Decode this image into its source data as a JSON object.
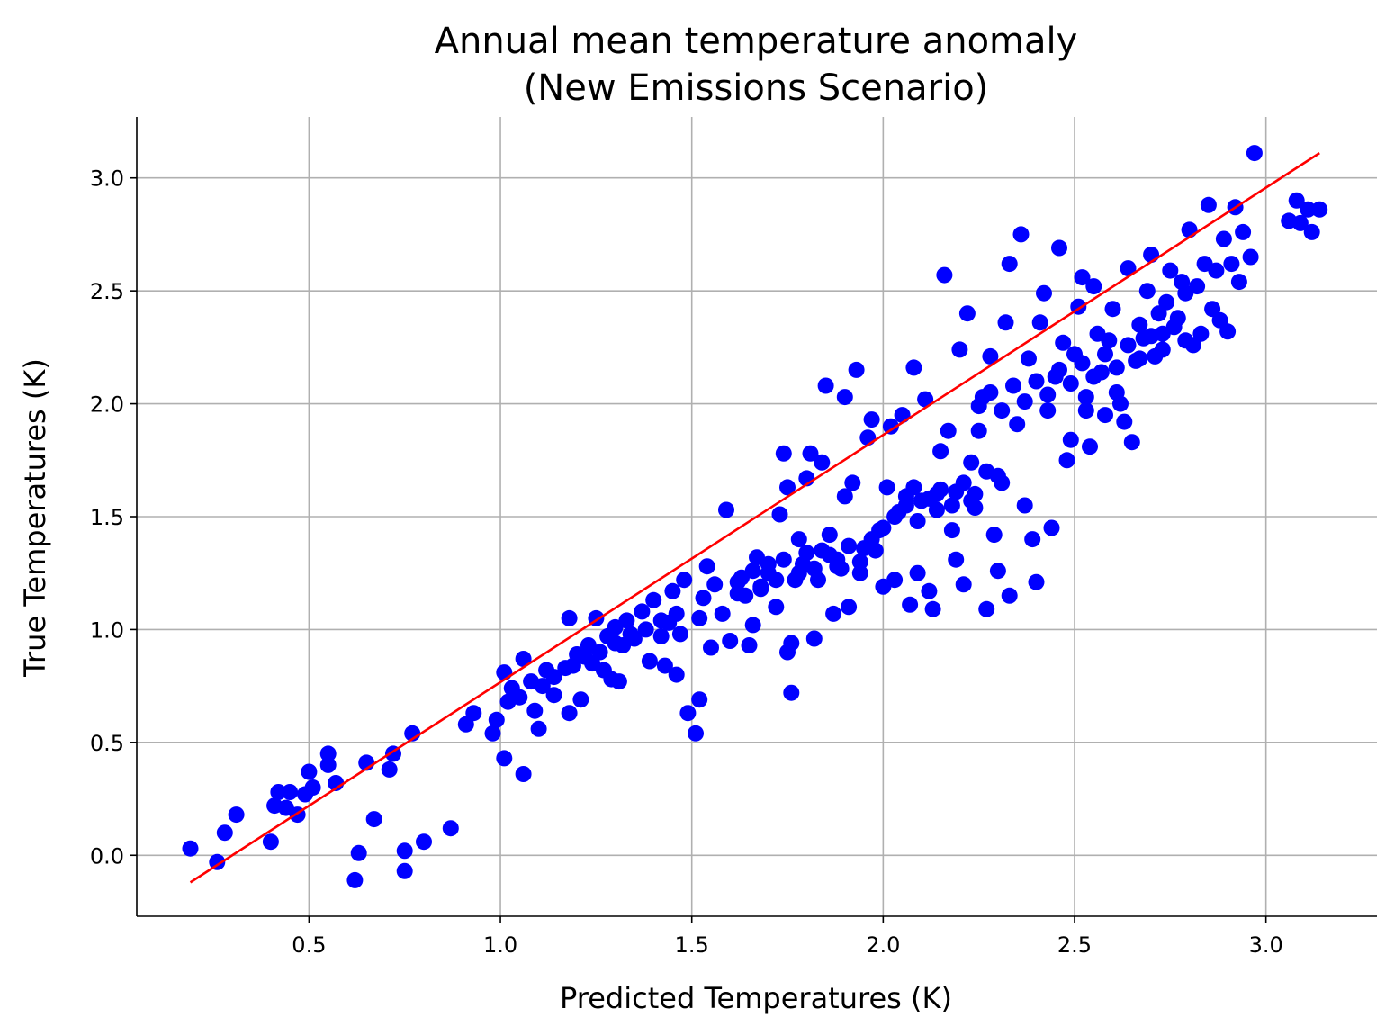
{
  "chart_data": {
    "type": "scatter",
    "title": "Annual mean temperature anomaly",
    "subtitle": "(New Emissions Scenario)",
    "xlabel": "Predicted Temperatures (K)",
    "ylabel": "True Temperatures (K)",
    "xlim": [
      0.05,
      3.29
    ],
    "ylim": [
      -0.27,
      3.27
    ],
    "x_ticks": [
      0.5,
      1.0,
      1.5,
      2.0,
      2.5,
      3.0
    ],
    "y_ticks": [
      0.0,
      0.5,
      1.0,
      1.5,
      2.0,
      2.5,
      3.0
    ],
    "x_tick_labels": [
      "0.5",
      "1.0",
      "1.5",
      "2.0",
      "2.5",
      "3.0"
    ],
    "y_tick_labels": [
      "0.0",
      "0.5",
      "1.0",
      "1.5",
      "2.0",
      "2.5",
      "3.0"
    ],
    "grid": true,
    "colors": {
      "points": "#0000ff",
      "fit_line": "#ff0000",
      "grid": "#b0b0b0"
    },
    "fit_line": {
      "x": [
        0.19,
        3.14
      ],
      "y": [
        -0.12,
        3.11
      ]
    },
    "series": [
      {
        "points": [
          [
            0.19,
            0.03
          ],
          [
            0.26,
            -0.03
          ],
          [
            0.28,
            0.1
          ],
          [
            0.31,
            0.18
          ],
          [
            0.4,
            0.06
          ],
          [
            0.41,
            0.22
          ],
          [
            0.42,
            0.28
          ],
          [
            0.44,
            0.21
          ],
          [
            0.45,
            0.28
          ],
          [
            0.47,
            0.18
          ],
          [
            0.49,
            0.27
          ],
          [
            0.5,
            0.37
          ],
          [
            0.51,
            0.3
          ],
          [
            0.55,
            0.45
          ],
          [
            0.55,
            0.4
          ],
          [
            0.57,
            0.32
          ],
          [
            0.62,
            -0.11
          ],
          [
            0.63,
            0.01
          ],
          [
            0.65,
            0.41
          ],
          [
            0.67,
            0.16
          ],
          [
            0.71,
            0.38
          ],
          [
            0.72,
            0.45
          ],
          [
            0.75,
            -0.07
          ],
          [
            0.75,
            0.02
          ],
          [
            0.77,
            0.54
          ],
          [
            0.8,
            0.06
          ],
          [
            0.87,
            0.12
          ],
          [
            0.91,
            0.58
          ],
          [
            0.93,
            0.63
          ],
          [
            0.98,
            0.54
          ],
          [
            0.99,
            0.6
          ],
          [
            1.01,
            0.43
          ],
          [
            1.01,
            0.81
          ],
          [
            1.02,
            0.68
          ],
          [
            1.03,
            0.74
          ],
          [
            1.05,
            0.7
          ],
          [
            1.06,
            0.36
          ],
          [
            1.06,
            0.87
          ],
          [
            1.08,
            0.77
          ],
          [
            1.09,
            0.64
          ],
          [
            1.1,
            0.56
          ],
          [
            1.12,
            0.82
          ],
          [
            1.14,
            0.71
          ],
          [
            1.17,
            0.83
          ],
          [
            1.18,
            0.63
          ],
          [
            1.18,
            1.05
          ],
          [
            1.2,
            0.89
          ],
          [
            1.21,
            0.69
          ],
          [
            1.23,
            0.93
          ],
          [
            1.24,
            0.85
          ],
          [
            1.25,
            1.05
          ],
          [
            1.27,
            0.82
          ],
          [
            1.28,
            0.97
          ],
          [
            1.29,
            0.78
          ],
          [
            1.3,
            1.01
          ],
          [
            1.31,
            0.77
          ],
          [
            1.32,
            0.93
          ],
          [
            1.33,
            1.04
          ],
          [
            1.35,
            0.96
          ],
          [
            1.37,
            1.08
          ],
          [
            1.39,
            0.86
          ],
          [
            1.4,
            1.13
          ],
          [
            1.42,
            0.97
          ],
          [
            1.43,
            0.84
          ],
          [
            1.44,
            1.03
          ],
          [
            1.45,
            1.17
          ],
          [
            1.46,
            0.8
          ],
          [
            1.47,
            0.98
          ],
          [
            1.48,
            1.22
          ],
          [
            1.49,
            0.63
          ],
          [
            1.51,
            0.54
          ],
          [
            1.52,
            0.69
          ],
          [
            1.52,
            1.05
          ],
          [
            1.53,
            1.14
          ],
          [
            1.54,
            1.28
          ],
          [
            1.55,
            0.92
          ],
          [
            1.56,
            1.2
          ],
          [
            1.58,
            1.07
          ],
          [
            1.59,
            1.53
          ],
          [
            1.6,
            0.95
          ],
          [
            1.62,
            1.16
          ],
          [
            1.63,
            1.23
          ],
          [
            1.65,
            0.93
          ],
          [
            1.66,
            1.02
          ],
          [
            1.67,
            1.32
          ],
          [
            1.68,
            1.18
          ],
          [
            1.7,
            1.25
          ],
          [
            1.72,
            1.1
          ],
          [
            1.73,
            1.51
          ],
          [
            1.74,
            1.78
          ],
          [
            1.75,
            1.63
          ],
          [
            1.75,
            0.9
          ],
          [
            1.76,
            0.72
          ],
          [
            1.76,
            0.94
          ],
          [
            1.77,
            1.22
          ],
          [
            1.78,
            1.4
          ],
          [
            1.79,
            1.29
          ],
          [
            1.8,
            1.67
          ],
          [
            1.81,
            1.78
          ],
          [
            1.82,
            0.96
          ],
          [
            1.83,
            1.22
          ],
          [
            1.84,
            1.35
          ],
          [
            1.84,
            1.74
          ],
          [
            1.85,
            2.08
          ],
          [
            1.86,
            1.42
          ],
          [
            1.87,
            1.07
          ],
          [
            1.88,
            1.31
          ],
          [
            1.89,
            1.27
          ],
          [
            1.9,
            1.59
          ],
          [
            1.9,
            2.03
          ],
          [
            1.91,
            1.1
          ],
          [
            1.92,
            1.65
          ],
          [
            1.93,
            2.15
          ],
          [
            1.94,
            1.25
          ],
          [
            1.95,
            1.36
          ],
          [
            1.96,
            1.85
          ],
          [
            1.97,
            1.93
          ],
          [
            1.98,
            1.35
          ],
          [
            1.99,
            1.44
          ],
          [
            2.0,
            1.19
          ],
          [
            2.01,
            1.63
          ],
          [
            2.02,
            1.9
          ],
          [
            2.03,
            1.22
          ],
          [
            2.04,
            1.52
          ],
          [
            2.05,
            1.95
          ],
          [
            2.06,
            1.59
          ],
          [
            2.07,
            1.11
          ],
          [
            2.08,
            2.16
          ],
          [
            2.09,
            1.25
          ],
          [
            2.1,
            1.57
          ],
          [
            2.11,
            2.02
          ],
          [
            2.12,
            1.17
          ],
          [
            2.13,
            1.09
          ],
          [
            2.14,
            1.6
          ],
          [
            2.15,
            1.79
          ],
          [
            2.16,
            2.57
          ],
          [
            2.17,
            1.88
          ],
          [
            2.18,
            1.44
          ],
          [
            2.19,
            1.31
          ],
          [
            2.2,
            2.24
          ],
          [
            2.21,
            1.2
          ],
          [
            2.22,
            2.4
          ],
          [
            2.23,
            1.74
          ],
          [
            2.24,
            1.54
          ],
          [
            2.25,
            1.88
          ],
          [
            2.26,
            2.03
          ],
          [
            2.27,
            1.09
          ],
          [
            2.28,
            2.21
          ],
          [
            2.29,
            1.42
          ],
          [
            2.3,
            1.26
          ],
          [
            2.31,
            1.65
          ],
          [
            2.32,
            2.36
          ],
          [
            2.33,
            1.15
          ],
          [
            2.33,
            2.62
          ],
          [
            2.35,
            1.91
          ],
          [
            2.36,
            2.75
          ],
          [
            2.37,
            1.55
          ],
          [
            2.38,
            2.2
          ],
          [
            2.39,
            1.4
          ],
          [
            2.4,
            1.21
          ],
          [
            2.41,
            2.36
          ],
          [
            2.42,
            2.49
          ],
          [
            2.43,
            1.97
          ],
          [
            2.44,
            1.45
          ],
          [
            2.45,
            2.12
          ],
          [
            2.46,
            2.69
          ],
          [
            2.47,
            2.27
          ],
          [
            2.48,
            1.75
          ],
          [
            2.49,
            1.84
          ],
          [
            2.5,
            2.22
          ],
          [
            2.51,
            2.43
          ],
          [
            2.52,
            2.56
          ],
          [
            2.53,
            2.03
          ],
          [
            2.54,
            1.81
          ],
          [
            2.55,
            2.52
          ],
          [
            2.56,
            2.31
          ],
          [
            2.57,
            2.14
          ],
          [
            2.58,
            1.95
          ],
          [
            2.59,
            2.28
          ],
          [
            2.6,
            2.42
          ],
          [
            2.61,
            2.05
          ],
          [
            2.62,
            2.0
          ],
          [
            2.63,
            1.92
          ],
          [
            2.64,
            2.6
          ],
          [
            2.65,
            1.83
          ],
          [
            2.66,
            2.19
          ],
          [
            2.67,
            2.35
          ],
          [
            2.68,
            2.29
          ],
          [
            2.69,
            2.5
          ],
          [
            2.7,
            2.66
          ],
          [
            2.71,
            2.21
          ],
          [
            2.72,
            2.4
          ],
          [
            2.73,
            2.31
          ],
          [
            2.74,
            2.45
          ],
          [
            2.75,
            2.59
          ],
          [
            2.77,
            2.38
          ],
          [
            2.78,
            2.54
          ],
          [
            2.79,
            2.49
          ],
          [
            2.8,
            2.77
          ],
          [
            2.81,
            2.26
          ],
          [
            2.82,
            2.52
          ],
          [
            2.83,
            2.31
          ],
          [
            2.84,
            2.62
          ],
          [
            2.85,
            2.88
          ],
          [
            2.86,
            2.42
          ],
          [
            2.87,
            2.59
          ],
          [
            2.88,
            2.37
          ],
          [
            2.89,
            2.73
          ],
          [
            2.9,
            2.32
          ],
          [
            2.91,
            2.62
          ],
          [
            2.92,
            2.87
          ],
          [
            2.93,
            2.54
          ],
          [
            2.94,
            2.76
          ],
          [
            2.96,
            2.65
          ],
          [
            2.97,
            3.11
          ],
          [
            3.06,
            2.81
          ],
          [
            3.08,
            2.9
          ],
          [
            3.09,
            2.8
          ],
          [
            3.11,
            2.86
          ],
          [
            3.12,
            2.76
          ],
          [
            3.14,
            2.86
          ],
          [
            1.86,
            1.33
          ],
          [
            1.88,
            1.28
          ],
          [
            1.91,
            1.37
          ],
          [
            1.94,
            1.3
          ],
          [
            1.97,
            1.4
          ],
          [
            2.0,
            1.45
          ],
          [
            2.03,
            1.5
          ],
          [
            2.06,
            1.55
          ],
          [
            2.09,
            1.48
          ],
          [
            2.12,
            1.58
          ],
          [
            2.15,
            1.62
          ],
          [
            2.18,
            1.55
          ],
          [
            2.21,
            1.65
          ],
          [
            2.24,
            1.6
          ],
          [
            2.27,
            1.7
          ],
          [
            2.3,
            1.68
          ],
          [
            2.14,
            1.53
          ],
          [
            2.19,
            1.61
          ],
          [
            2.23,
            1.57
          ],
          [
            2.08,
            1.63
          ],
          [
            2.25,
            1.99
          ],
          [
            2.28,
            2.05
          ],
          [
            2.31,
            1.97
          ],
          [
            2.34,
            2.08
          ],
          [
            2.37,
            2.01
          ],
          [
            2.4,
            2.1
          ],
          [
            2.43,
            2.04
          ],
          [
            2.46,
            2.15
          ],
          [
            2.49,
            2.09
          ],
          [
            2.52,
            2.18
          ],
          [
            2.55,
            2.12
          ],
          [
            2.58,
            2.22
          ],
          [
            2.61,
            2.16
          ],
          [
            2.64,
            2.26
          ],
          [
            2.67,
            2.2
          ],
          [
            2.7,
            2.3
          ],
          [
            2.73,
            2.24
          ],
          [
            2.76,
            2.34
          ],
          [
            2.79,
            2.28
          ],
          [
            2.53,
            1.97
          ],
          [
            1.62,
            1.21
          ],
          [
            1.64,
            1.15
          ],
          [
            1.66,
            1.26
          ],
          [
            1.68,
            1.19
          ],
          [
            1.7,
            1.29
          ],
          [
            1.72,
            1.22
          ],
          [
            1.74,
            1.31
          ],
          [
            1.78,
            1.25
          ],
          [
            1.8,
            1.34
          ],
          [
            1.82,
            1.27
          ],
          [
            1.11,
            0.75
          ],
          [
            1.14,
            0.79
          ],
          [
            1.19,
            0.84
          ],
          [
            1.22,
            0.88
          ],
          [
            1.26,
            0.9
          ],
          [
            1.3,
            0.94
          ],
          [
            1.34,
            0.98
          ],
          [
            1.38,
            1.0
          ],
          [
            1.42,
            1.04
          ],
          [
            1.46,
            1.07
          ]
        ]
      }
    ]
  }
}
